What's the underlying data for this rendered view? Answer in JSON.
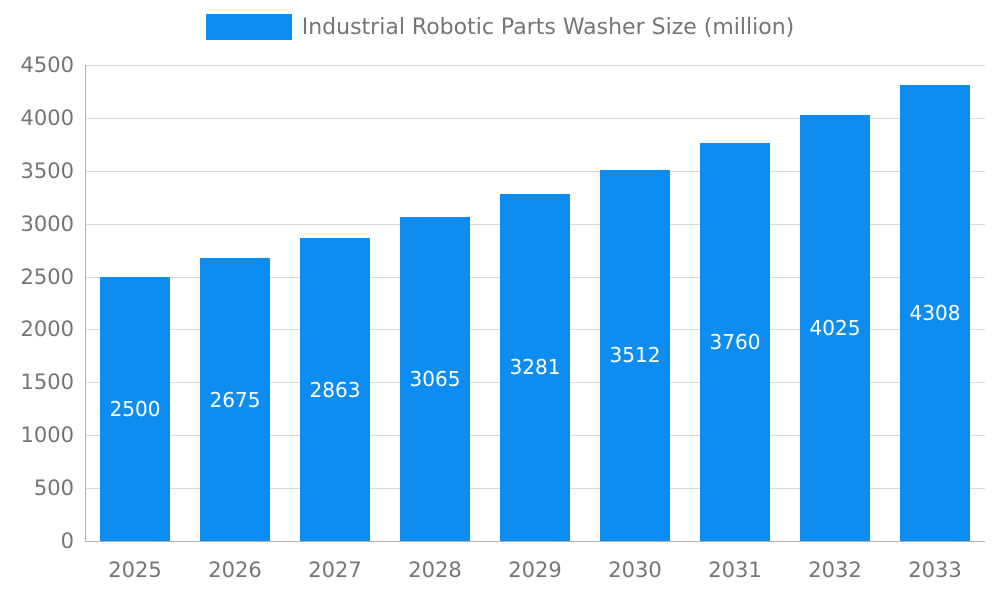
{
  "legend": {
    "label": "Industrial Robotic Parts Washer Size (million)",
    "swatch_color": "#0d8df2"
  },
  "chart_data": {
    "type": "bar",
    "title": "Industrial Robotic Parts Washer Size (million)",
    "categories": [
      "2025",
      "2026",
      "2027",
      "2028",
      "2029",
      "2030",
      "2031",
      "2032",
      "2033"
    ],
    "values": [
      2500,
      2675,
      2863,
      3065,
      3281,
      3512,
      3760,
      4025,
      4308
    ],
    "xlabel": "",
    "ylabel": "",
    "ylim": [
      0,
      4500
    ],
    "ytick_step": 500,
    "ytick_labels": [
      "0",
      "500",
      "1000",
      "1500",
      "2000",
      "2500",
      "3000",
      "3500",
      "4000",
      "4500"
    ],
    "bar_color": "#0d8df2",
    "value_label_color": "#ffffff",
    "grid": true,
    "legend_position": "top"
  }
}
